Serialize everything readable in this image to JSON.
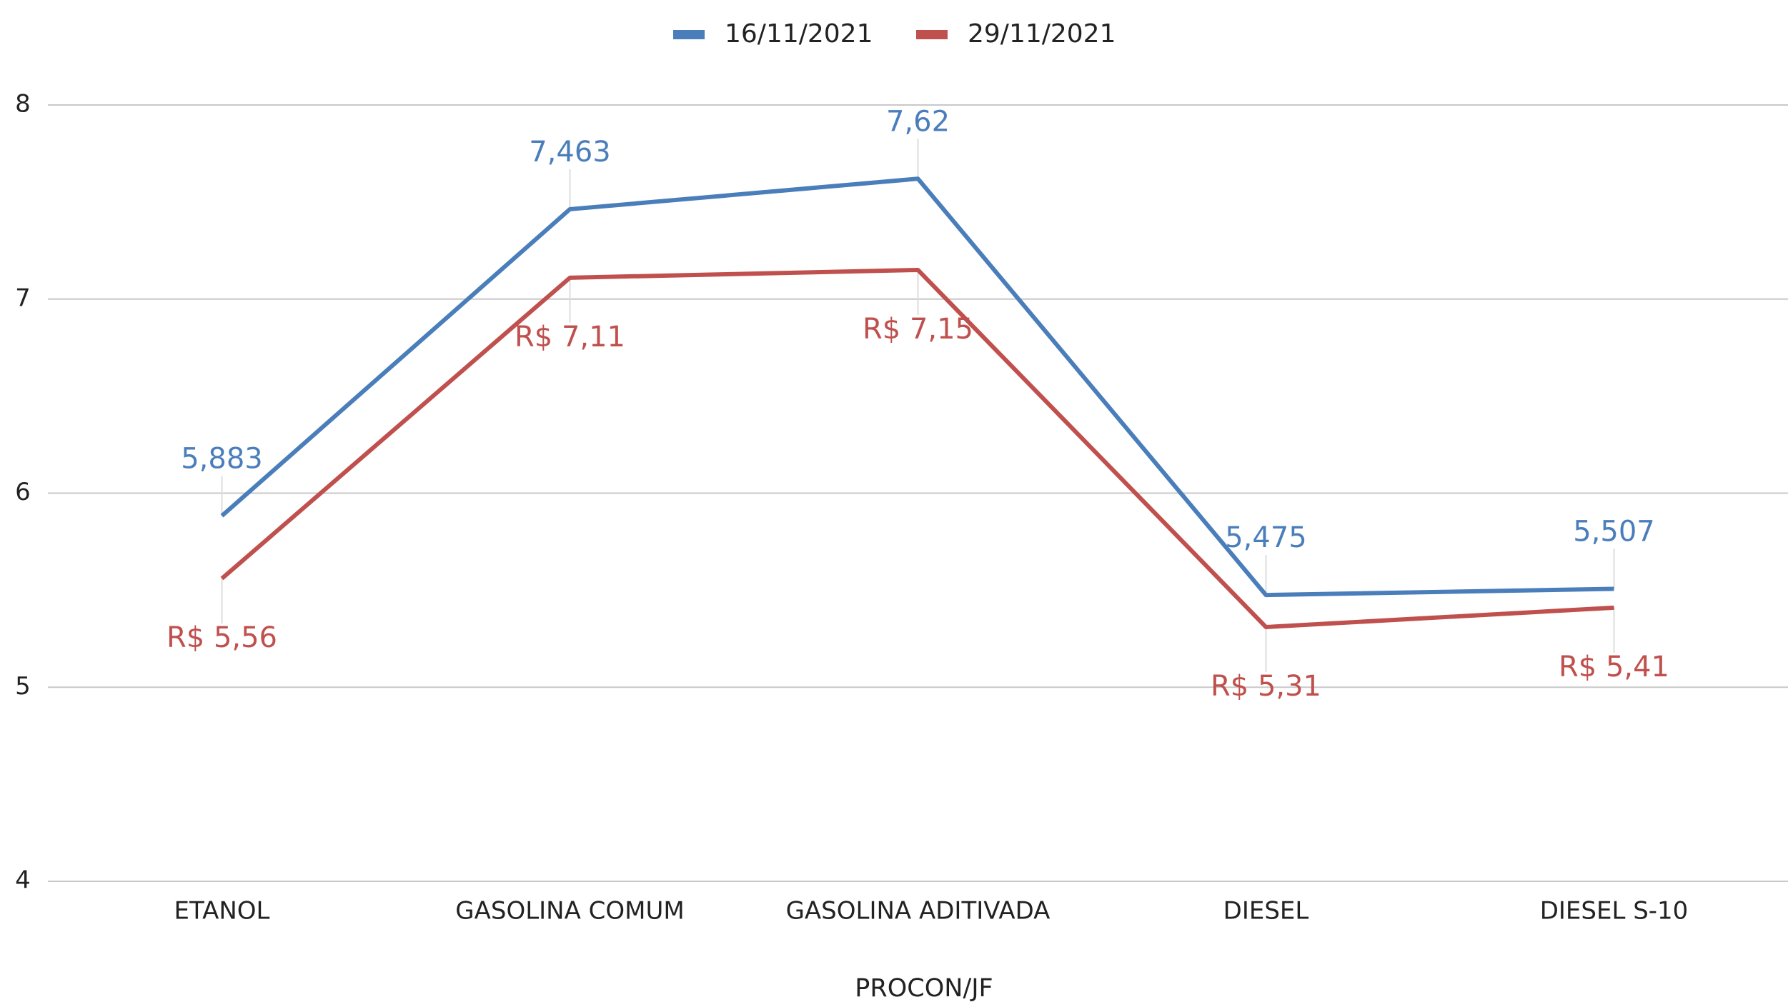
{
  "chart_data": {
    "type": "line",
    "xlabel": "PROCON/JF",
    "categories": [
      "ETANOL",
      "GASOLINA COMUM",
      "GASOLINA ADITIVADA",
      "DIESEL",
      "DIESEL S-10"
    ],
    "series": [
      {
        "name": "16/11/2021",
        "color": "#4a7ebb",
        "values": [
          5.883,
          7.463,
          7.62,
          5.475,
          5.507
        ],
        "value_labels": [
          "5,883",
          "7,463",
          "7,62",
          "5,475",
          "5,507"
        ]
      },
      {
        "name": "29/11/2021",
        "color": "#c0504d",
        "values": [
          5.56,
          7.11,
          7.15,
          5.31,
          5.41
        ],
        "value_labels": [
          "R$ 5,56",
          "R$ 7,11",
          "R$ 7,15",
          "R$ 5,31",
          "R$ 5,41"
        ]
      }
    ],
    "ylim": [
      4,
      8
    ],
    "yticks": [
      4,
      5,
      6,
      7,
      8
    ],
    "grid": true,
    "legend": "top"
  }
}
